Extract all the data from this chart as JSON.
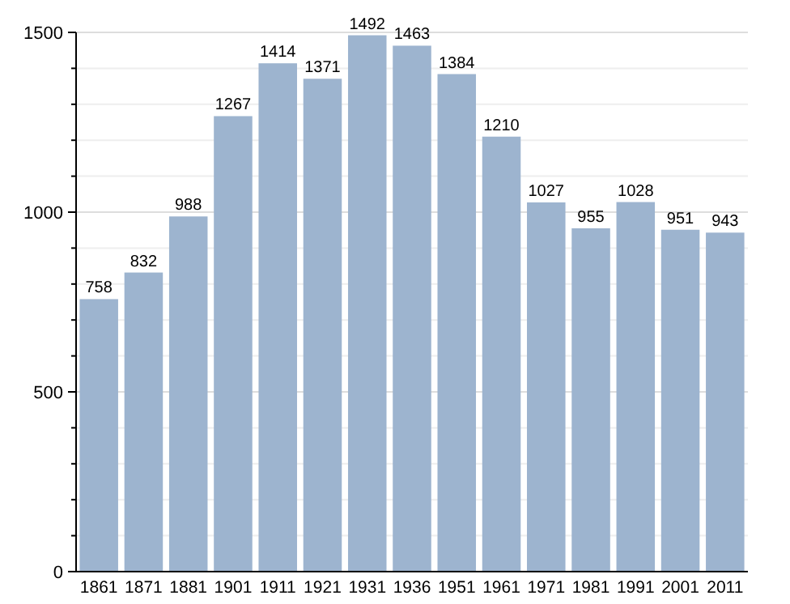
{
  "chart_data": {
    "type": "bar",
    "categories": [
      "1861",
      "1871",
      "1881",
      "1901",
      "1911",
      "1921",
      "1931",
      "1936",
      "1951",
      "1961",
      "1971",
      "1981",
      "1991",
      "2001",
      "2011"
    ],
    "values": [
      758,
      832,
      988,
      1267,
      1414,
      1371,
      1492,
      1463,
      1384,
      1210,
      1027,
      955,
      1028,
      951,
      943
    ],
    "color": "#9db4cf",
    "data_labels": true,
    "grid": "y",
    "ylim": [
      0,
      1500
    ],
    "yticks": [
      0,
      {
        "value": 100,
        "label": null
      },
      {
        "value": 200,
        "label": null
      },
      {
        "value": 300,
        "label": null
      },
      {
        "value": 400,
        "label": null
      },
      500,
      {
        "value": 600,
        "label": null
      },
      {
        "value": 700,
        "label": null
      },
      {
        "value": 800,
        "label": null
      },
      {
        "value": 900,
        "label": null
      },
      1000,
      {
        "value": 1100,
        "label": null
      },
      {
        "value": 1200,
        "label": null
      },
      {
        "value": 1300,
        "label": null
      },
      {
        "value": 1400,
        "label": null
      },
      1500
    ]
  }
}
